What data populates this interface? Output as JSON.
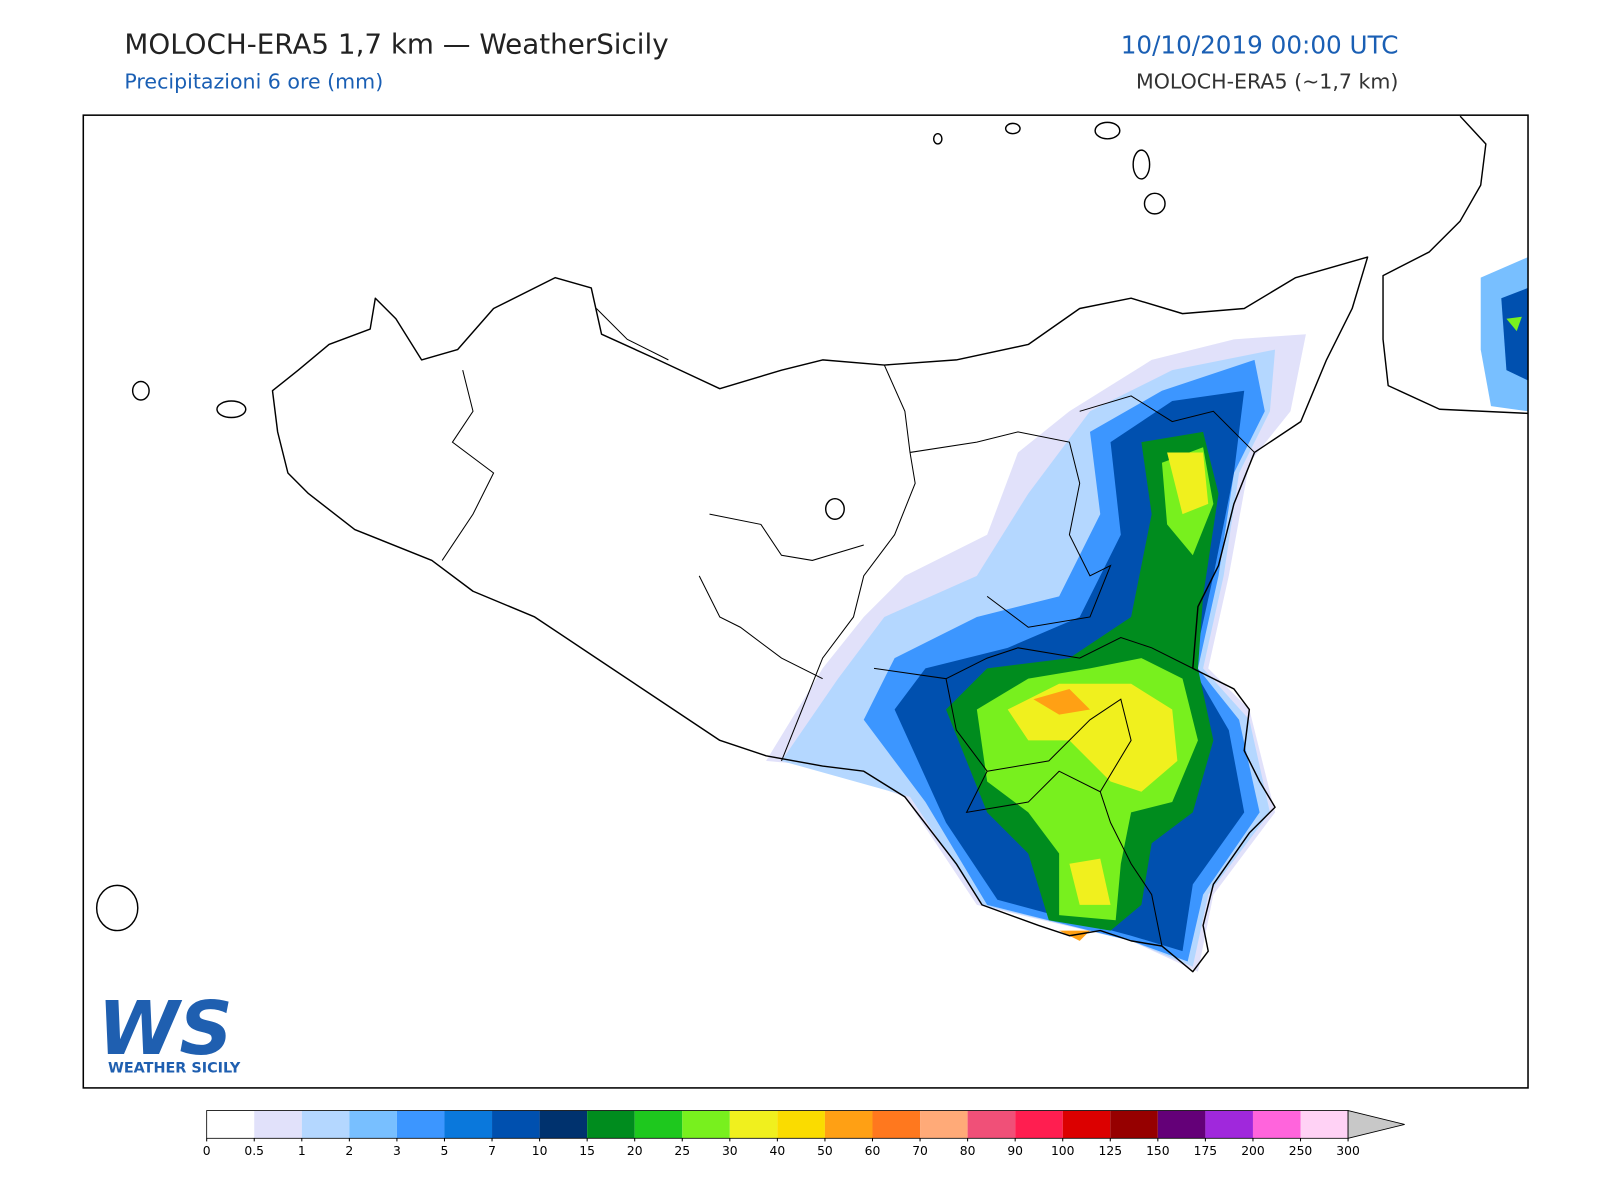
{
  "header": {
    "title": "MOLOCH-ERA5 1,7 km — WeatherSicily",
    "subtitle": "Precipitazioni 6 ore (mm)",
    "date": "10/10/2019 00:00 UTC",
    "model": "MOLOCH-ERA5 (~1,7 km)"
  },
  "logo": {
    "letters": "WS",
    "name": "WEATHER SICILY"
  },
  "colorbar": {
    "levels": [
      0,
      0.5,
      1,
      2,
      3,
      5,
      7,
      10,
      15,
      20,
      25,
      30,
      40,
      50,
      60,
      70,
      80,
      90,
      100,
      125,
      150,
      175,
      200,
      250,
      300
    ],
    "colors": [
      "#ffffff",
      "#e1e1fa",
      "#b4d7ff",
      "#78bfff",
      "#3c96ff",
      "#0a78dc",
      "#0050af",
      "#00326e",
      "#008c1e",
      "#1ec81e",
      "#78f01e",
      "#f0f01e",
      "#fadc00",
      "#ffa014",
      "#ff781e",
      "#ffaa78",
      "#f05078",
      "#ff1e50",
      "#dc0000",
      "#960000",
      "#640078",
      "#a028dc",
      "#ff64dc",
      "#ffd2f5"
    ],
    "extend_color": "#c8c8c8"
  }
}
